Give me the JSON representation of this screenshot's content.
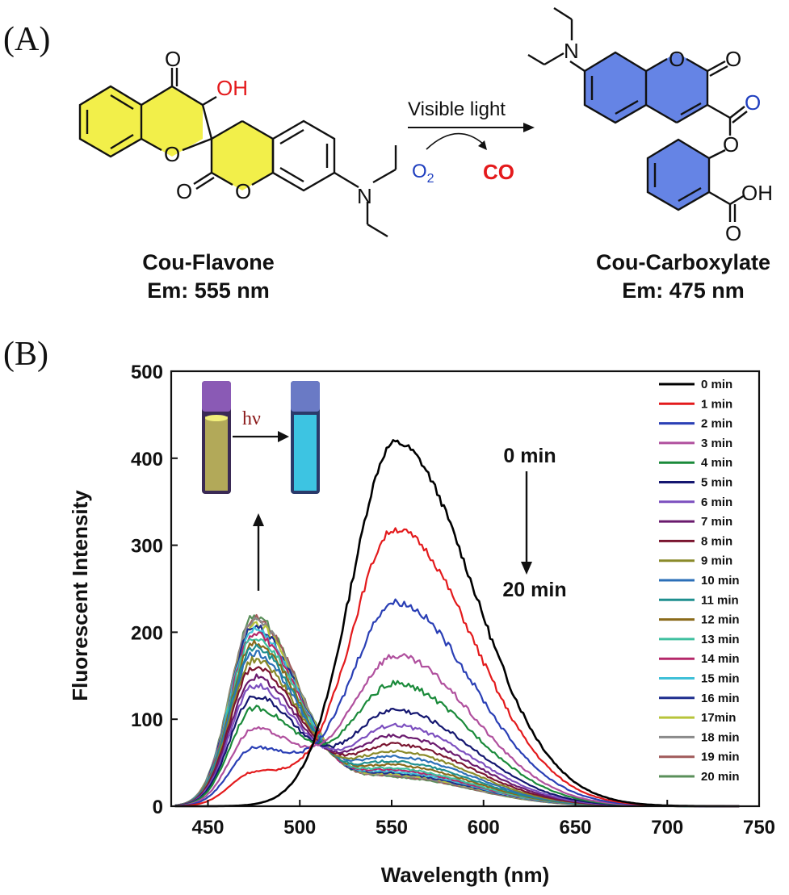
{
  "panel_a": {
    "label": "(A)",
    "reactant": {
      "name": "Cou-Flavone",
      "emission": "Em: 555 nm",
      "atoms": {
        "o_top": "O",
        "oh": "OH",
        "o_ring": "O",
        "o_lactone": "O",
        "o_ring2": "O",
        "n": "N"
      }
    },
    "product": {
      "name": "Cou-Carboxylate",
      "emission": "Em: 475 nm",
      "atoms": {
        "n": "N",
        "o_ring": "O",
        "o_carbonyl": "O",
        "o_ester_dbl": "O",
        "o_ester": "O",
        "oh": "OH",
        "o_acid": "O"
      }
    },
    "arrow": {
      "condition": "Visible light",
      "reagent": "O",
      "reagent_sub": "2",
      "byproduct": "CO"
    },
    "colors": {
      "reactant_ring": "#f2ef4a",
      "product_ring": "#4a6fe0",
      "red": "#e41a1c",
      "blue": "#1f3fbf"
    }
  },
  "panel_b": {
    "label": "(B)",
    "inset": {
      "label": "hν",
      "vial_before_color": "#c8c05a",
      "vial_after_color": "#3fd4f0"
    },
    "annotation": {
      "start": "0 min",
      "end": "20 min"
    }
  },
  "chart_data": {
    "type": "line",
    "title": "",
    "xlabel": "Wavelength (nm)",
    "ylabel": "Fluorescent Intensity",
    "xlim": [
      430,
      750
    ],
    "ylim": [
      0,
      500
    ],
    "xticks": [
      450,
      500,
      550,
      600,
      650,
      700,
      750
    ],
    "yticks": [
      0,
      100,
      200,
      300,
      400,
      500
    ],
    "grid": false,
    "legend_position": "right",
    "series": [
      {
        "name": "0 min",
        "color": "#000000",
        "peak1": 0,
        "peak2": 418
      },
      {
        "name": "1 min",
        "color": "#e31a1c",
        "peak1": 38,
        "peak2": 318
      },
      {
        "name": "2 min",
        "color": "#2a3fb5",
        "peak1": 66,
        "peak2": 234
      },
      {
        "name": "3 min",
        "color": "#b0509e",
        "peak1": 88,
        "peak2": 172
      },
      {
        "name": "4 min",
        "color": "#1a8a3a",
        "peak1": 112,
        "peak2": 140
      },
      {
        "name": "5 min",
        "color": "#141670",
        "peak1": 126,
        "peak2": 110
      },
      {
        "name": "6 min",
        "color": "#7c4fbf",
        "peak1": 138,
        "peak2": 92
      },
      {
        "name": "7 min",
        "color": "#6a1a6e",
        "peak1": 148,
        "peak2": 80
      },
      {
        "name": "8 min",
        "color": "#7a1530",
        "peak1": 160,
        "peak2": 70
      },
      {
        "name": "9 min",
        "color": "#8a8a2a",
        "peak1": 168,
        "peak2": 62
      },
      {
        "name": "10 min",
        "color": "#2c6fb8",
        "peak1": 176,
        "peak2": 56
      },
      {
        "name": "11 min",
        "color": "#1f8f8f",
        "peak1": 182,
        "peak2": 50
      },
      {
        "name": "12 min",
        "color": "#8a6a1a",
        "peak1": 188,
        "peak2": 46
      },
      {
        "name": "13 min",
        "color": "#3fbf9f",
        "peak1": 194,
        "peak2": 42
      },
      {
        "name": "14 min",
        "color": "#b5286a",
        "peak1": 198,
        "peak2": 40
      },
      {
        "name": "15 min",
        "color": "#3fc0d8",
        "peak1": 203,
        "peak2": 38
      },
      {
        "name": "16 min",
        "color": "#1f2f8f",
        "peak1": 207,
        "peak2": 36
      },
      {
        "name": "17min",
        "color": "#b8c43a",
        "peak1": 210,
        "peak2": 35
      },
      {
        "name": "18 min",
        "color": "#8a8a8a",
        "peak1": 213,
        "peak2": 34
      },
      {
        "name": "19 min",
        "color": "#a05a5a",
        "peak1": 216,
        "peak2": 33
      },
      {
        "name": "20 min",
        "color": "#5a8f5a",
        "peak1": 218,
        "peak2": 32
      }
    ]
  }
}
